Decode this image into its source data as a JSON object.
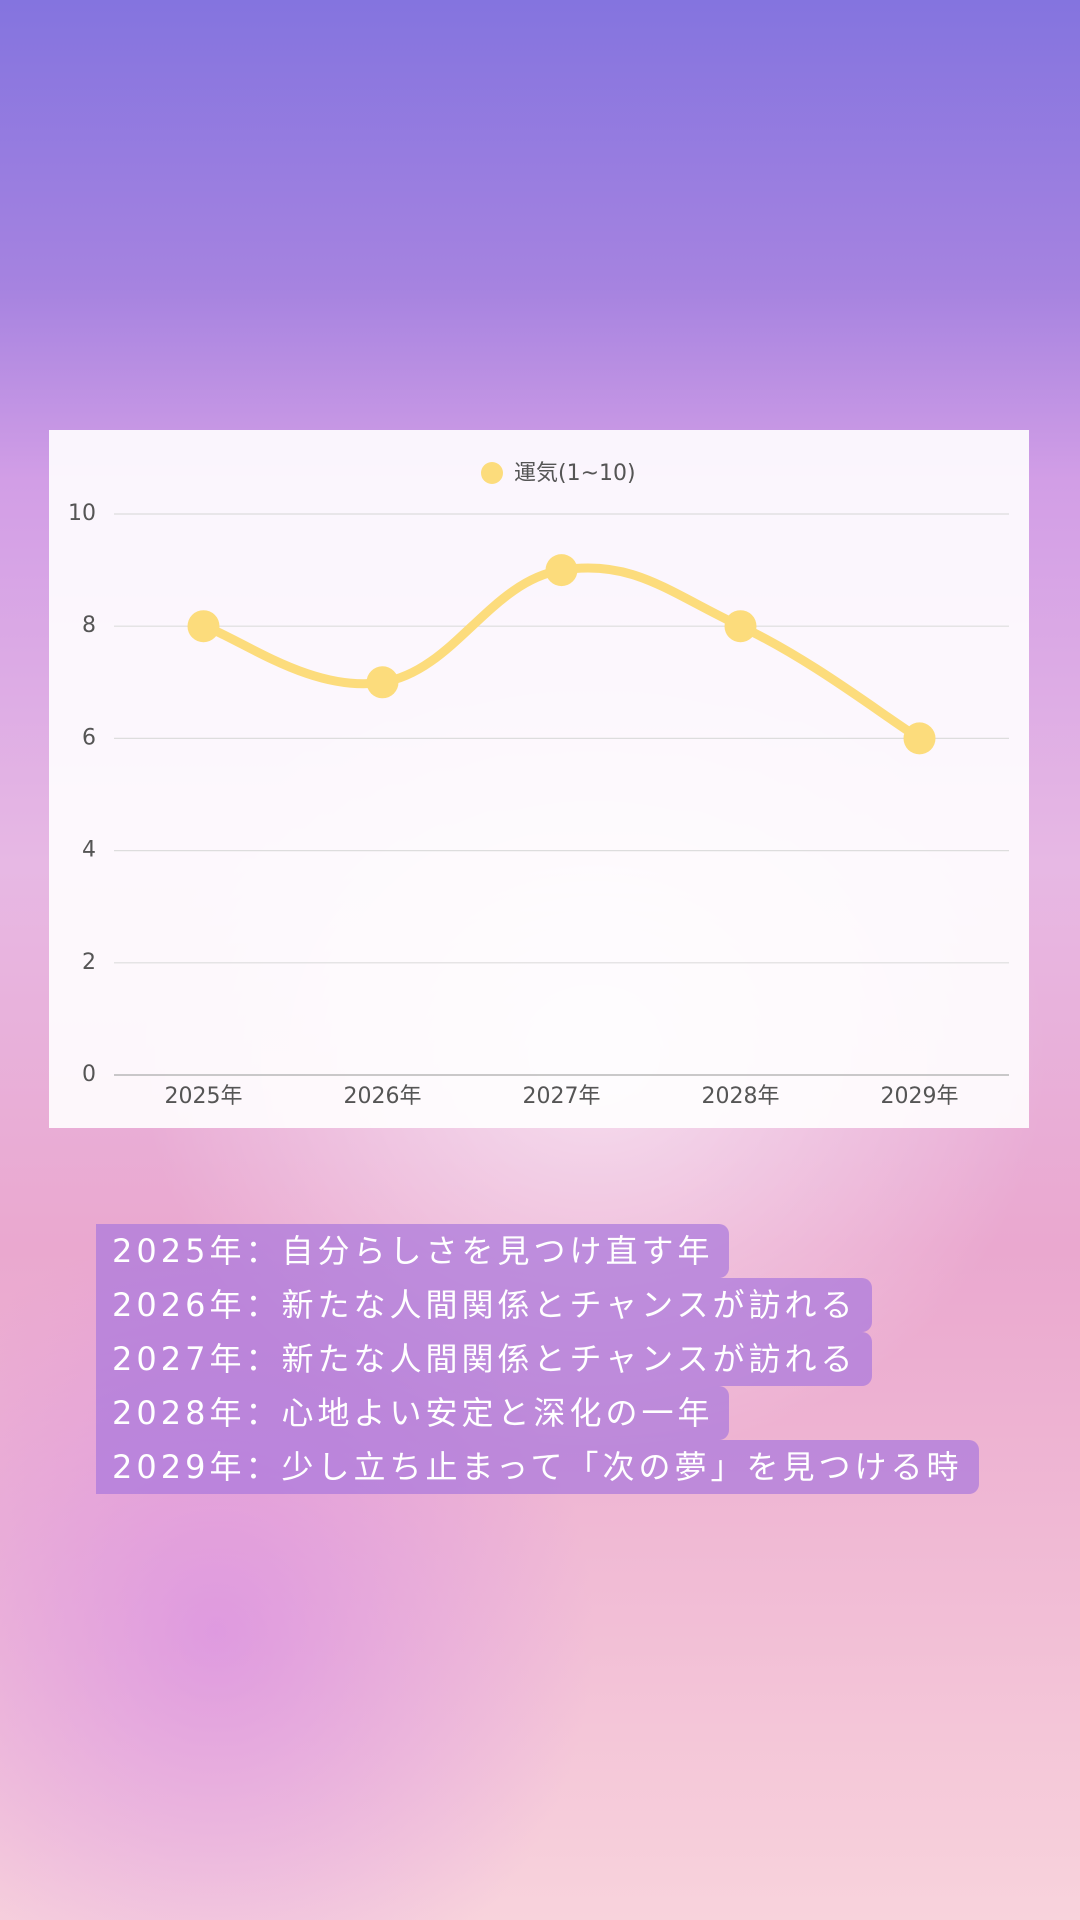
{
  "chart_data": {
    "type": "line",
    "categories": [
      "2025年",
      "2026年",
      "2027年",
      "2028年",
      "2029年"
    ],
    "series": [
      {
        "name": "運気(1~10)",
        "color": "#fcdc7c",
        "values": [
          8,
          7,
          9,
          8,
          6
        ]
      }
    ],
    "ylim": [
      0,
      10
    ],
    "yticks": [
      0,
      2,
      4,
      6,
      8,
      10
    ],
    "grid": true,
    "legend": "top"
  },
  "notes": {
    "lines": [
      "2025年：自分らしさを見つけ直す年",
      "2026年：新たな人間関係とチャンスが訪れる",
      "2027年：新たな人間関係とチャンスが訪れる",
      "2028年：心地よい安定と深化の一年",
      "2029年：少し立ち止まって「次の夢」を見つける時"
    ]
  }
}
